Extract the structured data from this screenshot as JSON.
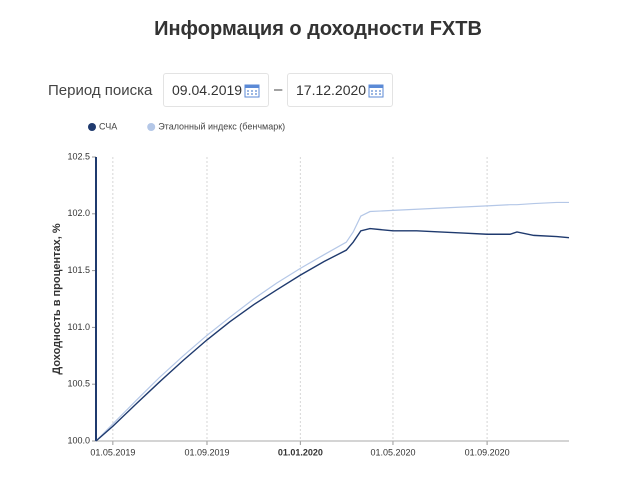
{
  "title": "Информация о доходности FXTB",
  "search": {
    "label": "Период поиска",
    "from": "09.04.2019",
    "separator": "–",
    "to": "17.12.2020"
  },
  "chart_data": {
    "type": "line",
    "ylabel": "Доходность в процентах, %",
    "legend": "top-left",
    "grid": true,
    "x": [
      "2019-04-09",
      "2019-05-01",
      "2019-06-01",
      "2019-07-01",
      "2019-08-01",
      "2019-09-01",
      "2019-10-01",
      "2019-11-01",
      "2019-12-01",
      "2020-01-01",
      "2020-02-01",
      "2020-03-01",
      "2020-03-10",
      "2020-03-20",
      "2020-04-01",
      "2020-05-01",
      "2020-06-01",
      "2020-07-01",
      "2020-08-01",
      "2020-09-01",
      "2020-10-01",
      "2020-10-10",
      "2020-11-01",
      "2020-12-01",
      "2020-12-17"
    ],
    "series": [
      {
        "name": "СЧА",
        "color": "#1f3a6e",
        "values": [
          100.0,
          100.13,
          100.33,
          100.52,
          100.71,
          100.89,
          101.05,
          101.2,
          101.33,
          101.46,
          101.58,
          101.68,
          101.75,
          101.85,
          101.87,
          101.85,
          101.85,
          101.84,
          101.83,
          101.82,
          101.82,
          101.84,
          101.81,
          101.8,
          101.79
        ]
      },
      {
        "name": "Эталонный индекс (бенчмарк)",
        "color": "#b4c7e7",
        "values": [
          100.0,
          100.15,
          100.36,
          100.56,
          100.75,
          100.93,
          101.09,
          101.25,
          101.39,
          101.52,
          101.64,
          101.75,
          101.84,
          101.98,
          102.02,
          102.03,
          102.04,
          102.05,
          102.06,
          102.07,
          102.08,
          102.08,
          102.09,
          102.1,
          102.1
        ]
      }
    ],
    "xlim": [
      "2019-04-09",
      "2020-12-17"
    ],
    "xticks": [
      {
        "value": "2019-05-01",
        "label": "01.05.2019"
      },
      {
        "value": "2019-09-01",
        "label": "01.09.2019"
      },
      {
        "value": "2020-01-01",
        "label": "01.01.2020"
      },
      {
        "value": "2020-05-01",
        "label": "01.05.2020"
      },
      {
        "value": "2020-09-01",
        "label": "01.09.2020"
      }
    ],
    "ylim": [
      100,
      102.5
    ],
    "yticks": [
      {
        "value": 100,
        "label": "100.0"
      },
      100.5,
      {
        "value": 101,
        "label": "101.0"
      },
      101.5,
      {
        "value": 102,
        "label": "102.0"
      },
      102.5
    ]
  }
}
